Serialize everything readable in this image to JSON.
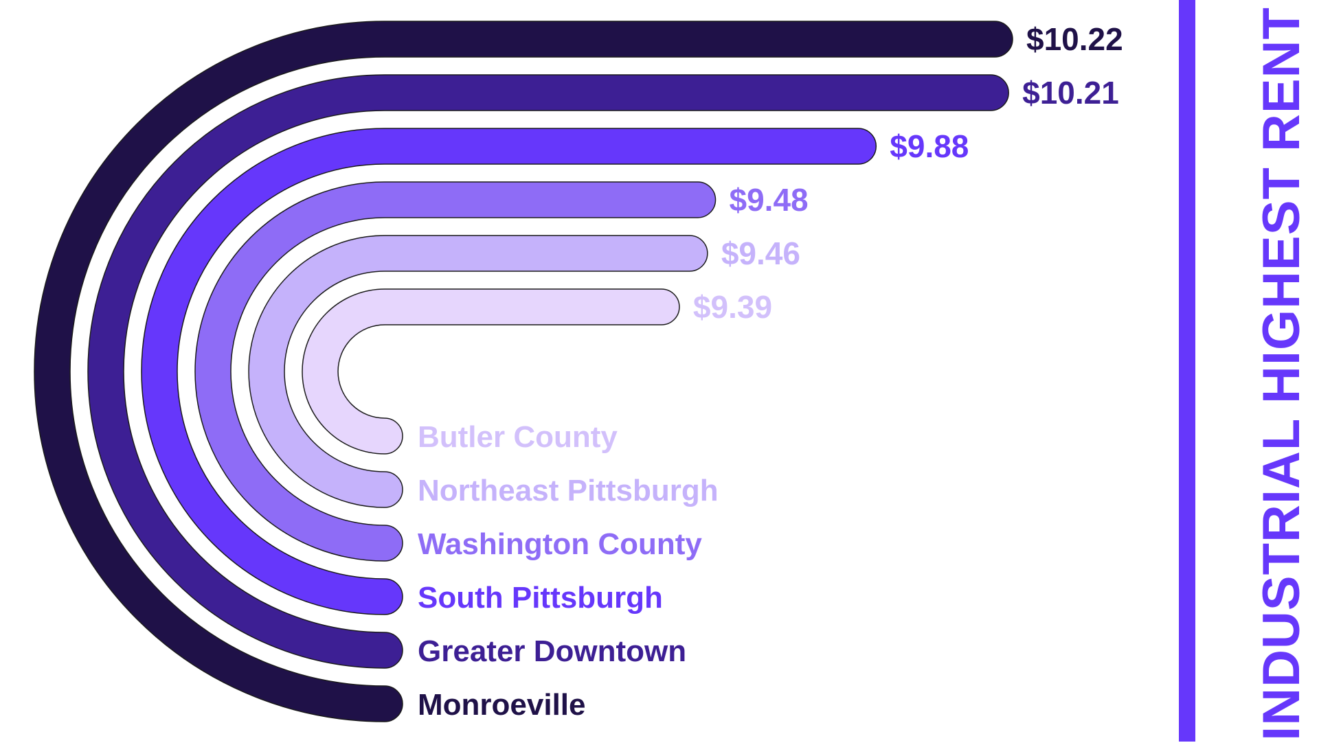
{
  "chart_data": {
    "type": "bar",
    "title": "INDUSTRIAL HIGHEST RENT",
    "categories": [
      "Monroeville",
      "Greater Downtown",
      "South Pittsburgh",
      "Washington County",
      "Northeast Pittsburgh",
      "Butler County"
    ],
    "values": [
      10.22,
      10.21,
      9.88,
      9.48,
      9.46,
      9.39
    ],
    "value_labels": [
      "$10.22",
      "$10.21",
      "$9.88",
      "$9.48",
      "$9.46",
      "$9.39"
    ],
    "colors": [
      "#1f1148",
      "#3d1f94",
      "#6637fb",
      "#8e6cf6",
      "#c5b2fb",
      "#e6d6fd"
    ],
    "label_colors": [
      "#1f1148",
      "#3d1f94",
      "#6637fb",
      "#8e6cf6",
      "#c5b2fb",
      "#d2c0fb"
    ],
    "accent": "#6637fb"
  }
}
